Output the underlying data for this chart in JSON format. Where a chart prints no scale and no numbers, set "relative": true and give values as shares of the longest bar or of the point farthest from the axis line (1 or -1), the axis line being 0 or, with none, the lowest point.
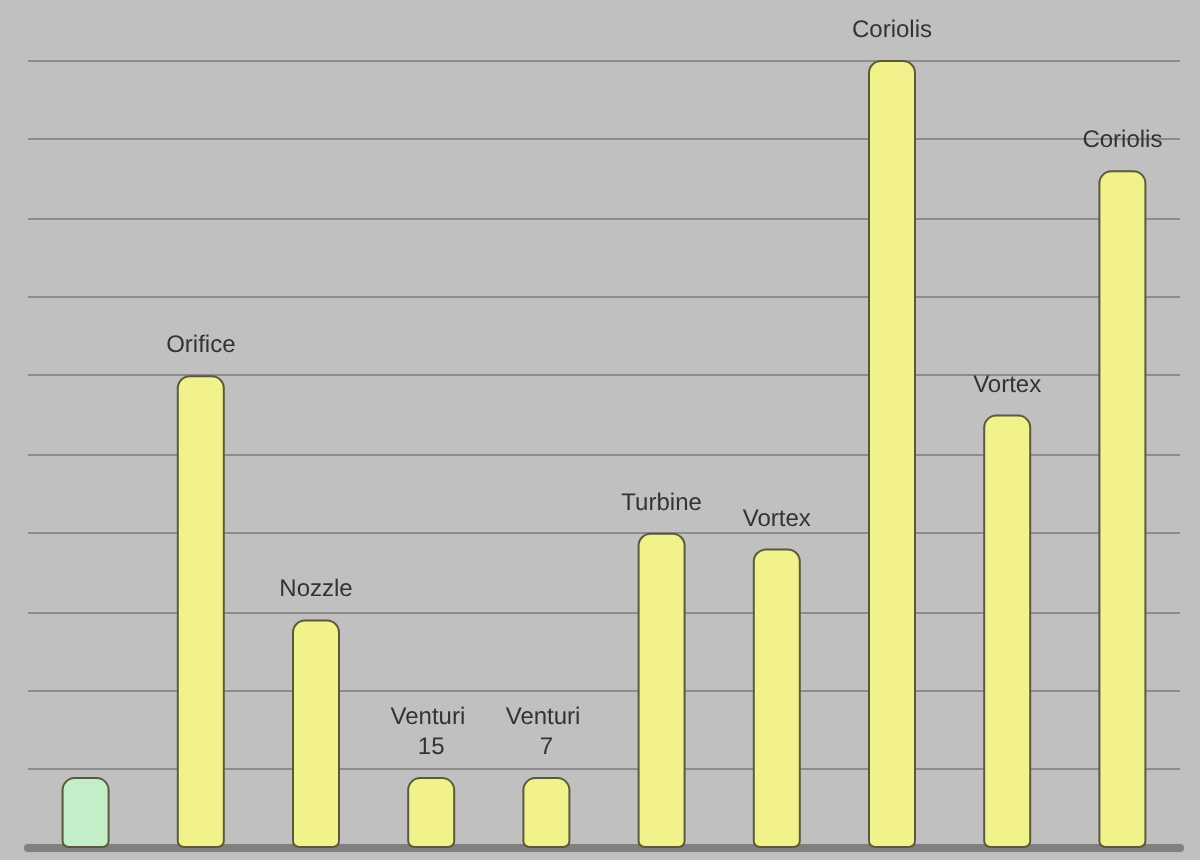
{
  "chart_data": {
    "type": "bar",
    "categories": [
      null,
      "Orifice",
      "Nozzle",
      "Venturi 15",
      "Venturi 7",
      "Turbine",
      "Vortex",
      "Coriolis",
      "Vortex",
      "Coriolis"
    ],
    "values": [
      0.09,
      0.6,
      0.29,
      0.09,
      0.09,
      0.4,
      0.38,
      1,
      0.55,
      0.86
    ],
    "colors": [
      "#c2efc9",
      "#f2f28c",
      "#f2f28c",
      "#f2f28c",
      "#f2f28c",
      "#f2f28c",
      "#f2f28c",
      "#f2f28c",
      "#f2f28c",
      "#f2f28c"
    ],
    "relative": true,
    "grid": "y"
  }
}
